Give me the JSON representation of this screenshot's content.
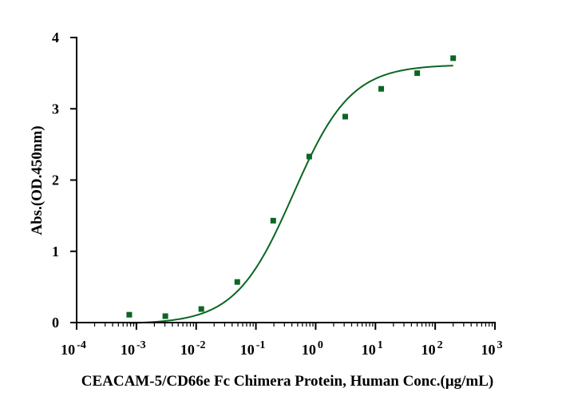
{
  "chart_data": {
    "type": "scatter",
    "title": "",
    "xlabel": "CEACAM-5/CD66e Fc Chimera Protein, Human Conc.(μg/mL)",
    "ylabel": "Abs.(OD.450nm)",
    "xscale": "log",
    "xlim": [
      0.0001,
      1000
    ],
    "ylim": [
      0,
      4
    ],
    "x_ticks": [
      {
        "base": "10",
        "exp": "-4",
        "value": 0.0001
      },
      {
        "base": "10",
        "exp": "-3",
        "value": 0.001
      },
      {
        "base": "10",
        "exp": "-2",
        "value": 0.01
      },
      {
        "base": "10",
        "exp": "-1",
        "value": 0.1
      },
      {
        "base": "10",
        "exp": "0",
        "value": 1
      },
      {
        "base": "10",
        "exp": "1",
        "value": 10
      },
      {
        "base": "10",
        "exp": "2",
        "value": 100
      },
      {
        "base": "10",
        "exp": "3",
        "value": 1000
      }
    ],
    "y_ticks": [
      {
        "label": "0",
        "value": 0
      },
      {
        "label": "1",
        "value": 1
      },
      {
        "label": "2",
        "value": 2
      },
      {
        "label": "3",
        "value": 3
      },
      {
        "label": "4",
        "value": 4
      }
    ],
    "grid": false,
    "legend": "none",
    "point_color": "#0b6623",
    "curve_color": "#0b6623",
    "series": [
      {
        "x": [
          0.00076,
          0.00305,
          0.0122,
          0.0488,
          0.195,
          0.781,
          3.125,
          12.5,
          50,
          200
        ],
        "y": [
          0.11,
          0.09,
          0.19,
          0.57,
          1.43,
          2.33,
          2.89,
          3.28,
          3.5,
          3.71
        ]
      }
    ],
    "fit_curve": {
      "model": "4PL",
      "bottom": -0.02,
      "top": 3.62,
      "ec50": 0.42,
      "hill": 0.9,
      "x_range": [
        0.00076,
        200
      ]
    }
  }
}
